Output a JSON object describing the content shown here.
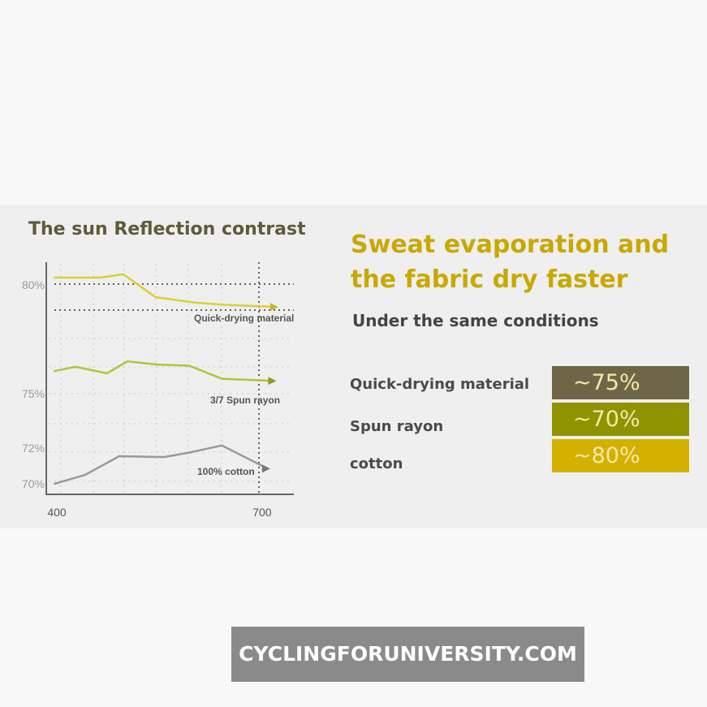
{
  "chart_data": {
    "type": "line",
    "title": "The sun Reflection contrast",
    "xlabel": "",
    "ylabel": "",
    "x_ticks": [
      "400",
      "700"
    ],
    "y_ticks": [
      "80%",
      "75%",
      "72%",
      "70%"
    ],
    "series": [
      {
        "name": "Quick-drying material",
        "color": "#d9cf3a",
        "x": [
          401,
          468,
          502,
          549,
          606,
          650,
          725
        ],
        "y": [
          80.3,
          80.3,
          80.45,
          79.4,
          79.15,
          79.05,
          78.95
        ]
      },
      {
        "name": "3/7 Spun rayon",
        "color": "#b5c23a",
        "x": [
          401,
          432,
          478,
          508,
          551,
          598,
          646,
          722
        ],
        "y": [
          76.0,
          76.2,
          75.9,
          76.45,
          76.3,
          76.25,
          75.65,
          75.55
        ]
      },
      {
        "name": "100% cotton",
        "color": "#999999",
        "x": [
          401,
          446,
          496,
          561,
          598,
          646,
          713
        ],
        "y": [
          69.95,
          70.45,
          71.5,
          71.45,
          71.7,
          72.1,
          70.8
        ]
      }
    ]
  },
  "right": {
    "heading_line1": "Sweat evaporation and",
    "heading_line2": "the fabric dry faster",
    "subheading": "Under the same conditions",
    "rows": [
      {
        "label": "Quick-drying material",
        "value": "~75%",
        "color": "#6e6747"
      },
      {
        "label": "Spun rayon",
        "value": "~70%",
        "color": "#8f9300"
      },
      {
        "label": "cotton",
        "value": "~80%",
        "color": "#d4b000"
      }
    ]
  },
  "watermark": "CYCLINGFORUNIVERSITY.COM"
}
